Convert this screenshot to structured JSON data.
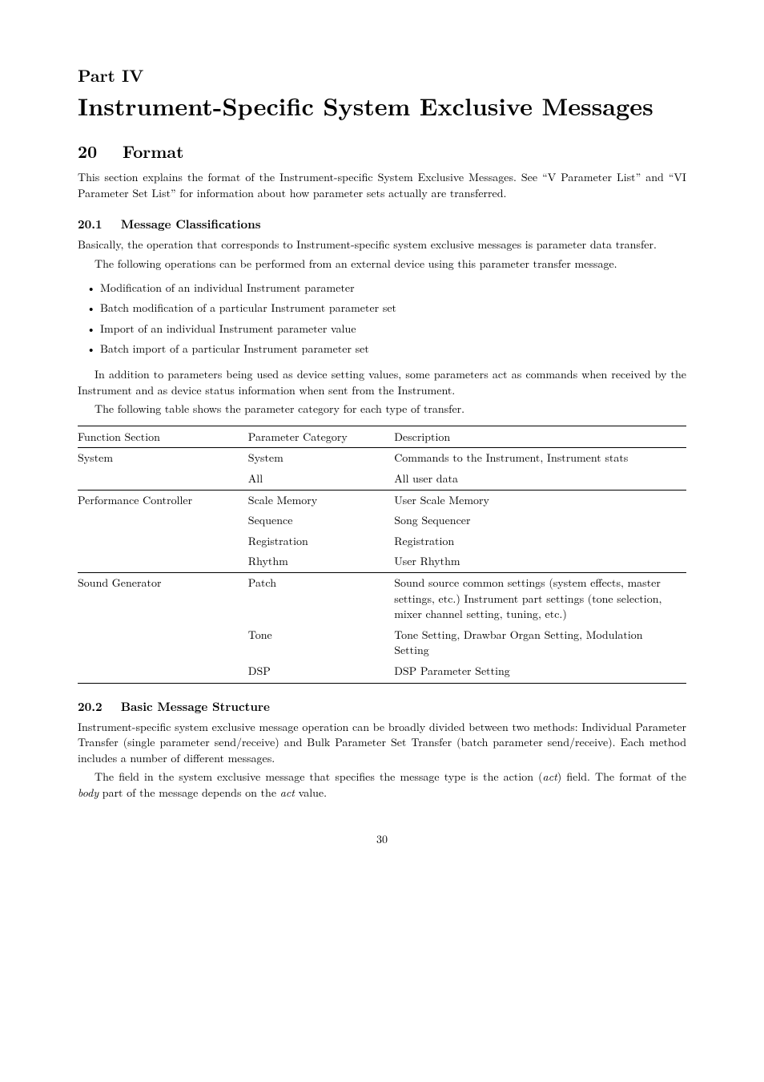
{
  "part": {
    "label": "Part IV",
    "title": "Instrument-Specific System Exclusive Messages"
  },
  "section20": {
    "number": "20",
    "title": "Format",
    "intro": "This section explains the format of the Instrument-specific System Exclusive Messages. See “V Parameter List” and “VI Parameter Set List” for information about how parameter sets actually are transferred."
  },
  "section20_1": {
    "number": "20.1",
    "title": "Message Classifications",
    "p1": "Basically, the operation that corresponds to Instrument-specific system exclusive messages is parameter data transfer.",
    "p2": "The following operations can be performed from an external device using this parameter transfer message.",
    "bullets": [
      "Modification of an individual Instrument parameter",
      "Batch modification of a particular Instrument parameter set",
      "Import of an individual Instrument parameter value",
      "Batch import of a particular Instrument parameter set"
    ],
    "p3": "In addition to parameters being used as device setting values, some parameters act as commands when received by the Instrument and as device status information when sent from the Instrument.",
    "p4": "The following table shows the parameter category for each type of transfer."
  },
  "table": {
    "headers": [
      "Function Section",
      "Parameter Category",
      "Description"
    ],
    "groups": [
      {
        "section": "System",
        "rows": [
          {
            "cat": "System",
            "desc": "Commands to the Instrument, Instrument stats"
          },
          {
            "cat": "All",
            "desc": "All user data"
          }
        ]
      },
      {
        "section": "Performance Controller",
        "rows": [
          {
            "cat": "Scale Memory",
            "desc": "User Scale Memory"
          },
          {
            "cat": "Sequence",
            "desc": "Song Sequencer"
          },
          {
            "cat": "Registration",
            "desc": "Registration"
          },
          {
            "cat": "Rhythm",
            "desc": "User Rhythm"
          }
        ]
      },
      {
        "section": "Sound Generator",
        "rows": [
          {
            "cat": "Patch",
            "desc": "Sound source common settings (system effects, master settings, etc.) Instrument part settings (tone selection, mixer channel setting, tuning, etc.)"
          },
          {
            "cat": "Tone",
            "desc": "Tone Setting, Drawbar Organ Setting, Modulation Setting"
          },
          {
            "cat": "DSP",
            "desc": "DSP Parameter Setting"
          }
        ]
      }
    ]
  },
  "section20_2": {
    "number": "20.2",
    "title": "Basic Message Structure",
    "p1": "Instrument-specific system exclusive message operation can be broadly divided between two methods: Individual Parameter Transfer (single parameter send/receive) and Bulk Parameter Set Transfer (batch parameter send/receive). Each method includes a number of different messages.",
    "p2_a": "The field in the system exclusive message that specifies the message type is the action (",
    "p2_b": "act",
    "p2_c": ") field. The format of the ",
    "p2_d": "body",
    "p2_e": " part of the message depends on the ",
    "p2_f": "act",
    "p2_g": " value."
  },
  "pageNumber": "30"
}
